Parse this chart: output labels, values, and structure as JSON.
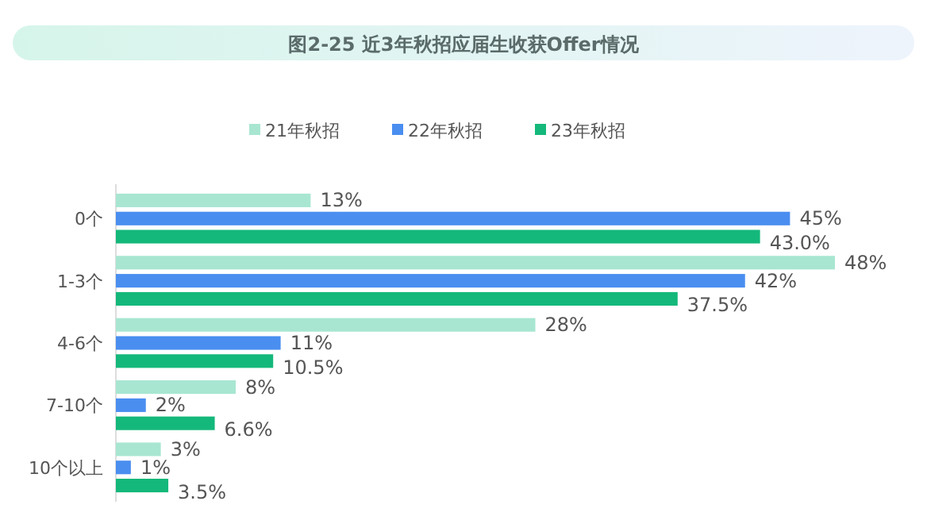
{
  "chart_data": {
    "type": "bar",
    "orientation": "horizontal",
    "title": "图2-25 近3年秋招应届生收获Offer情况",
    "categories": [
      "0个",
      "1-3个",
      "4-6个",
      "7-10个",
      "10个以上"
    ],
    "legend": "top",
    "series": [
      {
        "name": "21年秋招",
        "color": "#a8e6d2",
        "values": [
          13,
          48,
          28,
          8,
          3
        ],
        "value_labels": [
          "13%",
          "48%",
          "28%",
          "8%",
          "3%"
        ]
      },
      {
        "name": "22年秋招",
        "color": "#4a8ef0",
        "values": [
          45,
          42,
          11,
          2,
          1
        ],
        "value_labels": [
          "45%",
          "42%",
          "11%",
          "2%",
          "1%"
        ]
      },
      {
        "name": "23年秋招",
        "color": "#14b87a",
        "values": [
          43.0,
          37.5,
          10.5,
          6.6,
          3.5
        ],
        "value_labels": [
          "43.0%",
          "37.5%",
          "10.5%",
          "6.6%",
          "3.5%"
        ]
      }
    ]
  }
}
